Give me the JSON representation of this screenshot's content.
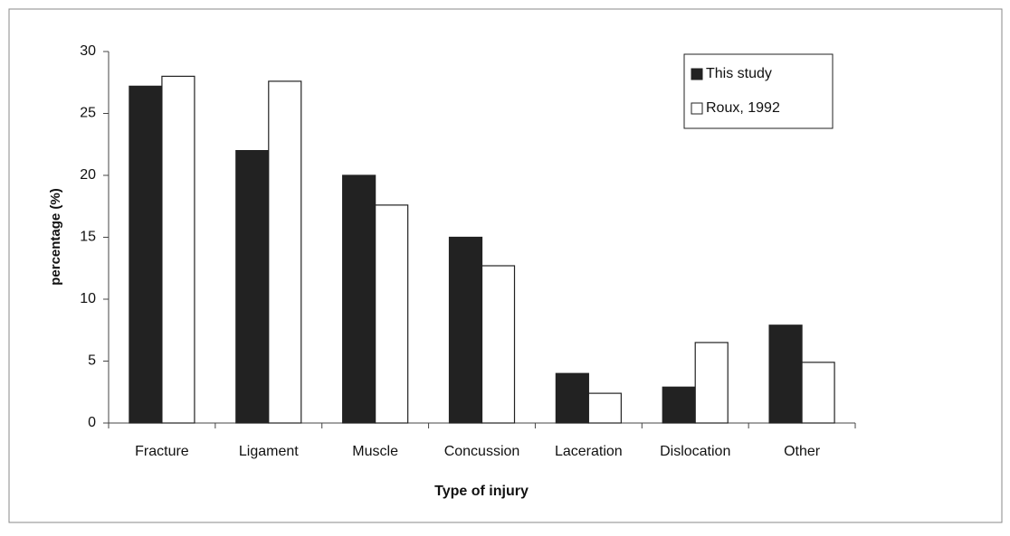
{
  "chart_data": {
    "type": "bar",
    "y_label": "percentage (%)",
    "x_label": "Type of injury",
    "categories": [
      "Fracture",
      "Ligament",
      "Muscle",
      "Concussion",
      "Laceration",
      "Dislocation",
      "Other"
    ],
    "series": [
      {
        "name": "This study",
        "color": "#222222",
        "values": [
          27.2,
          22,
          20,
          15,
          4,
          2.9,
          7.9
        ]
      },
      {
        "name": "Roux, 1992",
        "color": "#ffffff",
        "values": [
          28,
          27.6,
          17.6,
          12.7,
          2.4,
          6.5,
          4.9
        ]
      }
    ],
    "ylim": [
      0,
      30
    ],
    "yticks": [
      0,
      5,
      10,
      15,
      20,
      25,
      30
    ],
    "grid": false,
    "legend": "top-right"
  }
}
